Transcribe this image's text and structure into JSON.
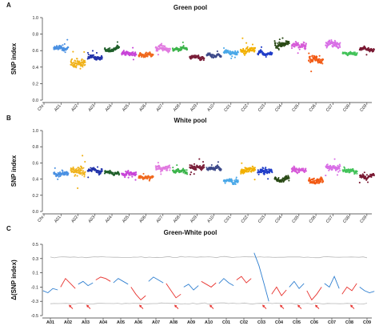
{
  "chart_data": [
    {
      "type": "scatter",
      "panel_label": "A",
      "title": "Green pool",
      "ylabel": "SNP index",
      "ylim": [
        0,
        1.0
      ],
      "yticks": [
        "0.0",
        "0.2",
        "0.4",
        "0.6",
        "0.8",
        "1.0"
      ],
      "xticks": [
        "Chr",
        "A01",
        "A02",
        "A03",
        "A04",
        "A05",
        "A06",
        "A07",
        "A08",
        "A09",
        "A10",
        "C01",
        "C02",
        "C03",
        "C04",
        "C05",
        "C06",
        "C07",
        "C08",
        "C09"
      ],
      "segments": [
        {
          "chr": "A01",
          "level": 0.62,
          "spread": 0.07,
          "color": "#4a90e2"
        },
        {
          "chr": "A02",
          "level": 0.45,
          "spread": 0.14,
          "color": "#f0b21a"
        },
        {
          "chr": "A03",
          "level": 0.52,
          "spread": 0.07,
          "color": "#2233aa"
        },
        {
          "chr": "A04",
          "level": 0.62,
          "spread": 0.06,
          "color": "#1f5f2a"
        },
        {
          "chr": "A05",
          "level": 0.56,
          "spread": 0.07,
          "color": "#c844d8"
        },
        {
          "chr": "A06",
          "level": 0.55,
          "spread": 0.06,
          "color": "#f06a1f"
        },
        {
          "chr": "A07",
          "level": 0.64,
          "spread": 0.09,
          "color": "#e17ae0"
        },
        {
          "chr": "A08",
          "level": 0.62,
          "spread": 0.06,
          "color": "#3cb44b"
        },
        {
          "chr": "A09",
          "level": 0.52,
          "spread": 0.05,
          "color": "#7a1f3a"
        },
        {
          "chr": "A10",
          "level": 0.54,
          "spread": 0.04,
          "color": "#3d4a8a"
        },
        {
          "chr": "C01",
          "level": 0.58,
          "spread": 0.05,
          "color": "#4aa8e8"
        },
        {
          "chr": "C02",
          "level": 0.6,
          "spread": 0.12,
          "color": "#f2b000"
        },
        {
          "chr": "C03",
          "level": 0.56,
          "spread": 0.06,
          "color": "#1f3cc8"
        },
        {
          "chr": "C04",
          "level": 0.68,
          "spread": 0.09,
          "color": "#2a4a16"
        },
        {
          "chr": "C05",
          "level": 0.66,
          "spread": 0.1,
          "color": "#d65ad8"
        },
        {
          "chr": "C06",
          "level": 0.5,
          "spread": 0.16,
          "color": "#f25a14"
        },
        {
          "chr": "C07",
          "level": 0.68,
          "spread": 0.1,
          "color": "#d86ee6"
        },
        {
          "chr": "C08",
          "level": 0.57,
          "spread": 0.05,
          "color": "#43c35a"
        },
        {
          "chr": "C09",
          "level": 0.62,
          "spread": 0.05,
          "color": "#7a1a33"
        }
      ]
    },
    {
      "type": "scatter",
      "panel_label": "B",
      "title": "White pool",
      "ylabel": "SNP index",
      "ylim": [
        0,
        1.0
      ],
      "yticks": [
        "0.0",
        "0.2",
        "0.4",
        "0.6",
        "0.8",
        "1.0"
      ],
      "xticks": [
        "Chr",
        "A01",
        "A02",
        "A03",
        "A04",
        "A05",
        "A06",
        "A07",
        "A08",
        "A09",
        "A10",
        "C01",
        "C02",
        "C03",
        "C04",
        "C05",
        "C06",
        "C07",
        "C08",
        "C09"
      ],
      "segments": [
        {
          "chr": "A01",
          "level": 0.47,
          "spread": 0.06,
          "color": "#4a90e2"
        },
        {
          "chr": "A02",
          "level": 0.5,
          "spread": 0.15,
          "color": "#f0b21a"
        },
        {
          "chr": "A03",
          "level": 0.5,
          "spread": 0.07,
          "color": "#2233aa"
        },
        {
          "chr": "A04",
          "level": 0.48,
          "spread": 0.05,
          "color": "#1f5f2a"
        },
        {
          "chr": "A05",
          "level": 0.47,
          "spread": 0.07,
          "color": "#c844d8"
        },
        {
          "chr": "A06",
          "level": 0.42,
          "spread": 0.05,
          "color": "#f06a1f"
        },
        {
          "chr": "A07",
          "level": 0.55,
          "spread": 0.09,
          "color": "#e17ae0"
        },
        {
          "chr": "A08",
          "level": 0.5,
          "spread": 0.06,
          "color": "#3cb44b"
        },
        {
          "chr": "A09",
          "level": 0.55,
          "spread": 0.08,
          "color": "#7a1f3a"
        },
        {
          "chr": "A10",
          "level": 0.52,
          "spread": 0.07,
          "color": "#3d4a8a"
        },
        {
          "chr": "C01",
          "level": 0.38,
          "spread": 0.06,
          "color": "#4aa8e8"
        },
        {
          "chr": "C02",
          "level": 0.5,
          "spread": 0.12,
          "color": "#f2b000"
        },
        {
          "chr": "C03",
          "level": 0.5,
          "spread": 0.1,
          "color": "#1f3cc8"
        },
        {
          "chr": "C04",
          "level": 0.4,
          "spread": 0.08,
          "color": "#2a4a16"
        },
        {
          "chr": "C05",
          "level": 0.52,
          "spread": 0.09,
          "color": "#d65ad8"
        },
        {
          "chr": "C06",
          "level": 0.38,
          "spread": 0.12,
          "color": "#f25a14"
        },
        {
          "chr": "C07",
          "level": 0.55,
          "spread": 0.09,
          "color": "#d86ee6"
        },
        {
          "chr": "C08",
          "level": 0.5,
          "spread": 0.06,
          "color": "#43c35a"
        },
        {
          "chr": "C09",
          "level": 0.43,
          "spread": 0.05,
          "color": "#7a1a33"
        }
      ]
    },
    {
      "type": "line",
      "panel_label": "C",
      "title": "Green-White pool",
      "ylabel": "Δ(SNP index)",
      "ylim": [
        -0.5,
        0.5
      ],
      "yticks": [
        "-0.5",
        "-0.3",
        "-0.1",
        "0.1",
        "0.3",
        "0.5"
      ],
      "xticks": [
        "A01",
        "A02",
        "A03",
        "A04",
        "A05",
        "A06",
        "A07",
        "A08",
        "A09",
        "A10",
        "C01",
        "C02",
        "C03",
        "C04",
        "C05",
        "C06",
        "C07",
        "C08",
        "C09"
      ],
      "series_colors": [
        "#2f7fd0",
        "#e8322e"
      ],
      "threshold_color": "#b8b8b8",
      "upper_threshold": 0.32,
      "lower_threshold": -0.33,
      "delta": [
        {
          "chr": "A01",
          "y": [
            -0.15,
            -0.18,
            -0.12,
            -0.14
          ]
        },
        {
          "chr": "A02",
          "y": [
            -0.1,
            0.02,
            -0.05,
            -0.12
          ]
        },
        {
          "chr": "A03",
          "y": [
            -0.06,
            -0.02,
            -0.08,
            -0.04
          ]
        },
        {
          "chr": "A04",
          "y": [
            0.0,
            0.04,
            0.02,
            -0.02
          ]
        },
        {
          "chr": "A05",
          "y": [
            -0.04,
            0.02,
            -0.02,
            -0.06
          ]
        },
        {
          "chr": "A06",
          "y": [
            -0.1,
            -0.2,
            -0.28,
            -0.22
          ]
        },
        {
          "chr": "A07",
          "y": [
            -0.02,
            0.04,
            0.0,
            -0.04
          ]
        },
        {
          "chr": "A08",
          "y": [
            -0.05,
            -0.15,
            -0.25,
            -0.2
          ]
        },
        {
          "chr": "A09",
          "y": [
            -0.1,
            -0.06,
            -0.14,
            -0.08
          ]
        },
        {
          "chr": "A10",
          "y": [
            -0.02,
            -0.06,
            -0.1,
            -0.04
          ]
        },
        {
          "chr": "C01",
          "y": [
            -0.05,
            0.02,
            -0.04,
            -0.08
          ]
        },
        {
          "chr": "C02",
          "y": [
            0.0,
            0.05,
            -0.04,
            0.02
          ]
        },
        {
          "chr": "C03",
          "y": [
            0.38,
            0.2,
            -0.05,
            -0.3
          ]
        },
        {
          "chr": "C04",
          "y": [
            -0.2,
            -0.1,
            -0.22,
            -0.14
          ]
        },
        {
          "chr": "C05",
          "y": [
            -0.1,
            -0.02,
            -0.12,
            -0.05
          ]
        },
        {
          "chr": "C06",
          "y": [
            -0.15,
            -0.28,
            -0.2,
            -0.1
          ]
        },
        {
          "chr": "C07",
          "y": [
            -0.05,
            -0.1,
            0.05,
            -0.12
          ]
        },
        {
          "chr": "C08",
          "y": [
            -0.2,
            -0.1,
            -0.15,
            -0.05
          ]
        },
        {
          "chr": "C09",
          "y": [
            -0.1,
            -0.15,
            -0.18,
            -0.16
          ]
        }
      ],
      "arrows_at": [
        "A02",
        "A03",
        "A06",
        "A08",
        "A10",
        "C03",
        "C04",
        "C05",
        "C06",
        "C08"
      ],
      "arrow_color": "#e8322e"
    }
  ]
}
